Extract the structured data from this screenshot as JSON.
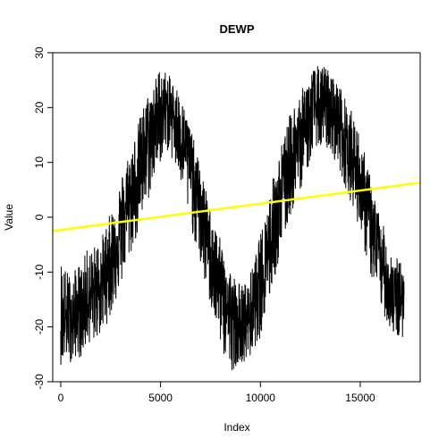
{
  "chart_data": {
    "type": "line",
    "title": "DEWP",
    "xlabel": "Index",
    "ylabel": "Value",
    "xlim": [
      -400,
      18000
    ],
    "ylim": [
      -30,
      30
    ],
    "x_ticks": [
      0,
      5000,
      10000,
      15000
    ],
    "y_ticks": [
      -30,
      -20,
      -10,
      0,
      10,
      20,
      30
    ],
    "x_tick_labels": [
      "0",
      "5000",
      "10000",
      "15000"
    ],
    "y_tick_labels": [
      "-30",
      "-20",
      "-10",
      "0",
      "10",
      "20",
      "30"
    ],
    "grid": false,
    "legend": "none",
    "series": [
      {
        "color": "#000000",
        "x": [
          0,
          200,
          400,
          600,
          800,
          1000,
          1200,
          1400,
          1600,
          1800,
          2000,
          2200,
          2400,
          2600,
          2800,
          3000,
          3200,
          3400,
          3600,
          3800,
          4000,
          4200,
          4400,
          4600,
          4800,
          5000,
          5200,
          5400,
          5600,
          5800,
          6000,
          6200,
          6400,
          6600,
          6800,
          7000,
          7200,
          7400,
          7600,
          7800,
          8000,
          8200,
          8400,
          8600,
          8800,
          9000,
          9200,
          9400,
          9600,
          9800,
          10000,
          10200,
          10400,
          10600,
          10800,
          11000,
          11200,
          11400,
          11600,
          11800,
          12000,
          12200,
          12400,
          12600,
          12800,
          13000,
          13200,
          13400,
          13600,
          13800,
          14000,
          14200,
          14400,
          14600,
          14800,
          15000,
          15200,
          15400,
          15600,
          15800,
          16000,
          16200,
          16400,
          16600,
          16800,
          17000,
          17200
        ],
        "y_center": [
          -19,
          -19,
          -18,
          -18,
          -17,
          -17,
          -16,
          -15,
          -14,
          -13,
          -12,
          -10,
          -8,
          -6,
          -4,
          -2,
          1,
          3,
          5,
          8,
          10,
          12,
          14,
          16,
          18,
          19,
          20,
          20,
          19,
          18,
          16,
          14,
          11,
          8,
          5,
          2,
          -1,
          -4,
          -7,
          -10,
          -13,
          -15,
          -17,
          -19,
          -20,
          -20,
          -20,
          -19,
          -17,
          -15,
          -12,
          -9,
          -6,
          -3,
          0,
          3,
          6,
          9,
          11,
          13,
          15,
          17,
          18,
          19,
          20,
          20,
          20,
          20,
          19,
          18,
          17,
          15,
          13,
          11,
          9,
          7,
          4,
          1,
          -2,
          -5,
          -8,
          -10,
          -12,
          -14,
          -15,
          -15,
          -14
        ],
        "y_min": [
          -27,
          -26,
          -26,
          -27,
          -25,
          -26,
          -24,
          -23,
          -23,
          -22,
          -22,
          -20,
          -19,
          -17,
          -15,
          -13,
          -10,
          -8,
          -6,
          -4,
          -2,
          1,
          3,
          6,
          8,
          10,
          12,
          12,
          10,
          8,
          6,
          3,
          0,
          -3,
          -6,
          -9,
          -12,
          -15,
          -18,
          -21,
          -23,
          -26,
          -28,
          -28,
          -27,
          -26,
          -27,
          -26,
          -25,
          -23,
          -22,
          -19,
          -16,
          -13,
          -10,
          -7,
          -4,
          -1,
          1,
          3,
          5,
          7,
          9,
          11,
          13,
          12,
          13,
          12,
          11,
          10,
          8,
          6,
          4,
          2,
          0,
          -3,
          -6,
          -9,
          -12,
          -14,
          -16,
          -18,
          -20,
          -21,
          -22,
          -23,
          -21
        ],
        "y_max": [
          -7,
          -9,
          -10,
          -12,
          -8,
          -9,
          -7,
          -5,
          -6,
          -4,
          -4,
          -2,
          0,
          2,
          5,
          7,
          10,
          12,
          14,
          16,
          19,
          21,
          23,
          24,
          26,
          28,
          27,
          26,
          25,
          24,
          22,
          20,
          18,
          15,
          12,
          9,
          6,
          3,
          0,
          -2,
          -4,
          -6,
          -8,
          -10,
          -11,
          -12,
          -12,
          -11,
          -9,
          -6,
          -3,
          0,
          4,
          7,
          10,
          13,
          15,
          18,
          20,
          22,
          23,
          24,
          26,
          27,
          28,
          27,
          28,
          27,
          26,
          25,
          24,
          22,
          21,
          19,
          17,
          15,
          12,
          9,
          6,
          3,
          0,
          -2,
          -4,
          -6,
          -7,
          -8,
          -8
        ]
      },
      {
        "color": "#ffff00",
        "type": "trend-line",
        "x": [
          -400,
          18000
        ],
        "y": [
          -2.5,
          6.3
        ]
      }
    ]
  }
}
